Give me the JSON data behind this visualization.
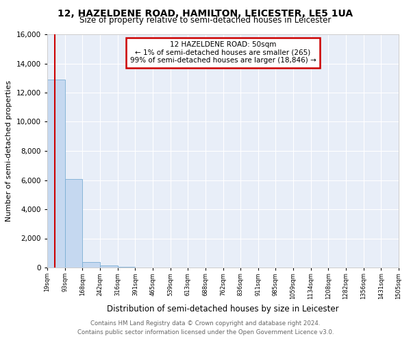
{
  "title": "12, HAZELDENE ROAD, HAMILTON, LEICESTER, LE5 1UA",
  "subtitle": "Size of property relative to semi-detached houses in Leicester",
  "xlabel": "Distribution of semi-detached houses by size in Leicester",
  "ylabel": "Number of semi-detached properties",
  "bar_color": "#c5d8f0",
  "bar_edge_color": "#7aadd4",
  "background_color": "#e8eef8",
  "annotation_box_color": "#cc0000",
  "annotation_line1": "12 HAZELDENE ROAD: 50sqm",
  "annotation_line2": "← 1% of semi-detached houses are smaller (265)",
  "annotation_line3": "99% of semi-detached houses are larger (18,846) →",
  "property_line_x": 50,
  "ylim": [
    0,
    16000
  ],
  "yticks": [
    0,
    2000,
    4000,
    6000,
    8000,
    10000,
    12000,
    14000,
    16000
  ],
  "bins": [
    19,
    93,
    168,
    242,
    316,
    391,
    465,
    539,
    613,
    688,
    762,
    836,
    911,
    985,
    1059,
    1134,
    1208,
    1282,
    1356,
    1431,
    1505
  ],
  "bin_labels": [
    "19sqm",
    "93sqm",
    "168sqm",
    "242sqm",
    "316sqm",
    "391sqm",
    "465sqm",
    "539sqm",
    "613sqm",
    "688sqm",
    "762sqm",
    "836sqm",
    "911sqm",
    "985sqm",
    "1059sqm",
    "1134sqm",
    "1208sqm",
    "1282sqm",
    "1356sqm",
    "1431sqm",
    "1505sqm"
  ],
  "bar_heights": [
    12900,
    6050,
    400,
    150,
    30,
    10,
    5,
    3,
    2,
    1,
    1,
    1,
    0,
    0,
    0,
    0,
    0,
    0,
    0,
    0
  ],
  "footer_line1": "Contains HM Land Registry data © Crown copyright and database right 2024.",
  "footer_line2": "Contains public sector information licensed under the Open Government Licence v3.0."
}
